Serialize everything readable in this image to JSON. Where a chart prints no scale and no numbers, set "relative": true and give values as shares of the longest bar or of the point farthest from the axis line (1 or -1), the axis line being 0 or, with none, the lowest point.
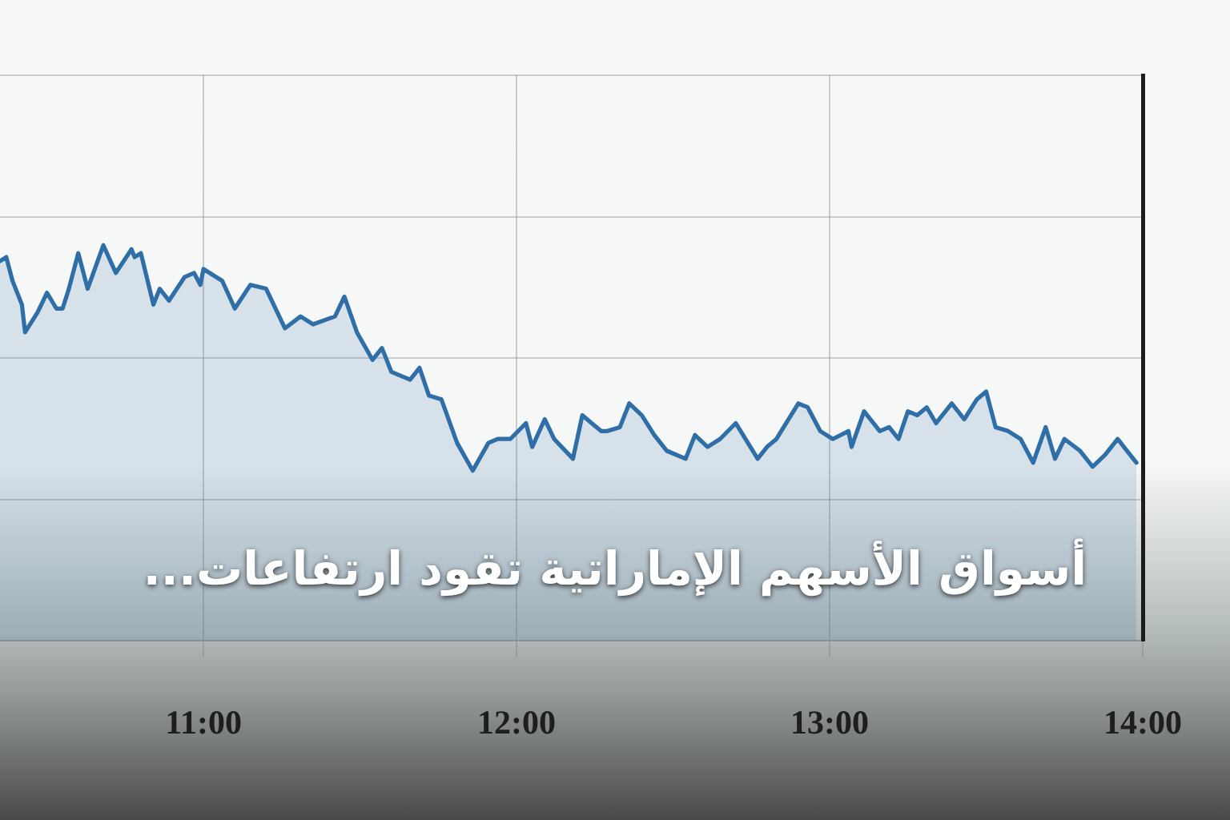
{
  "chart_data": {
    "type": "area",
    "title": "أسواق الأسهم الإماراتية تقود ارتفاعات...",
    "relative": true,
    "x": [
      10.35,
      10.37,
      10.39,
      10.42,
      10.43,
      10.47,
      10.5,
      10.53,
      10.55,
      10.57,
      10.6,
      10.63,
      10.68,
      10.72,
      10.77,
      10.78,
      10.8,
      10.84,
      10.86,
      10.89,
      10.94,
      10.97,
      10.99,
      11.0,
      11.06,
      11.1,
      11.15,
      11.2,
      11.26,
      11.31,
      11.35,
      11.42,
      11.45,
      11.49,
      11.54,
      11.57,
      11.6,
      11.66,
      11.69,
      11.72,
      11.76,
      11.81,
      11.86,
      11.91,
      11.94,
      11.98,
      12.03,
      12.05,
      12.09,
      12.12,
      12.18,
      12.21,
      12.24,
      12.27,
      12.29,
      12.33,
      12.36,
      12.4,
      12.44,
      12.48,
      12.54,
      12.57,
      12.61,
      12.65,
      12.7,
      12.77,
      12.8,
      12.83,
      12.9,
      12.93,
      12.97,
      13.01,
      13.06,
      13.07,
      13.11,
      13.16,
      13.19,
      13.22,
      13.25,
      13.28,
      13.31,
      13.34,
      13.39,
      13.43,
      13.47,
      13.5,
      13.53,
      13.57,
      13.61,
      13.65,
      13.69,
      13.72,
      13.75,
      13.8,
      13.84,
      13.88,
      13.92,
      13.95,
      13.98
    ],
    "series": [
      {
        "color": "#2f6ea6",
        "values": [
          0.96,
          0.97,
          0.91,
          0.85,
          0.78,
          0.83,
          0.88,
          0.84,
          0.84,
          0.89,
          0.98,
          0.89,
          1.0,
          0.93,
          0.99,
          0.97,
          0.98,
          0.85,
          0.89,
          0.86,
          0.92,
          0.93,
          0.9,
          0.94,
          0.91,
          0.84,
          0.9,
          0.89,
          0.79,
          0.82,
          0.8,
          0.82,
          0.87,
          0.78,
          0.71,
          0.74,
          0.68,
          0.66,
          0.69,
          0.62,
          0.61,
          0.5,
          0.43,
          0.5,
          0.51,
          0.51,
          0.55,
          0.49,
          0.56,
          0.51,
          0.46,
          0.57,
          0.55,
          0.53,
          0.53,
          0.54,
          0.6,
          0.57,
          0.52,
          0.48,
          0.46,
          0.52,
          0.49,
          0.51,
          0.55,
          0.46,
          0.49,
          0.51,
          0.6,
          0.59,
          0.53,
          0.51,
          0.53,
          0.49,
          0.58,
          0.53,
          0.54,
          0.51,
          0.58,
          0.57,
          0.59,
          0.55,
          0.6,
          0.56,
          0.61,
          0.63,
          0.54,
          0.53,
          0.51,
          0.45,
          0.54,
          0.46,
          0.51,
          0.48,
          0.44,
          0.47,
          0.51,
          0.48,
          0.45
        ]
      }
    ],
    "xlim": [
      10.35,
      14
    ],
    "xticks": [
      {
        "value": 11,
        "label": "11:00"
      },
      {
        "value": 12,
        "label": "12:00"
      },
      {
        "value": 13,
        "label": "13:00"
      },
      {
        "value": 14,
        "label": "14:00"
      }
    ],
    "grid": true,
    "marker": "none"
  }
}
